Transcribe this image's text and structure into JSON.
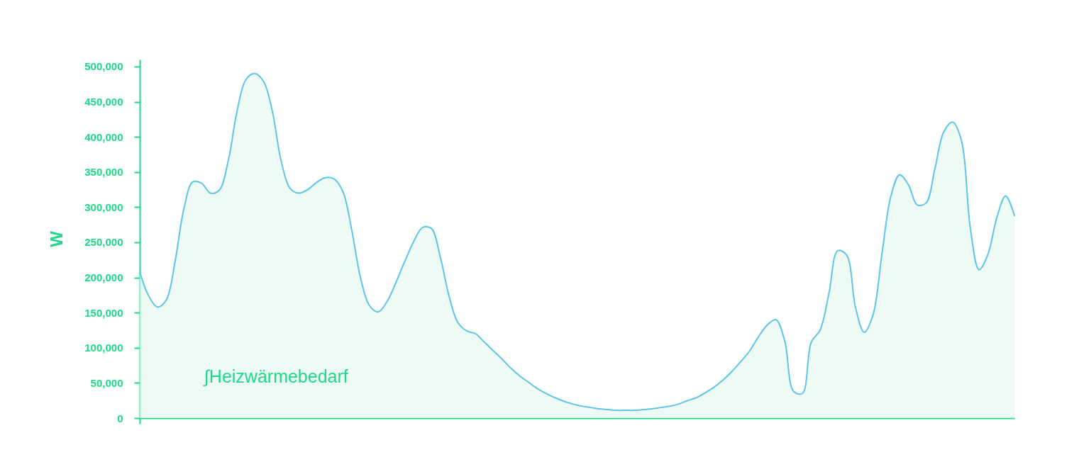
{
  "chart_data": {
    "type": "area",
    "ylabel": "W",
    "annotations": [
      "∫Heizwärmebedarf"
    ],
    "categories": [
      null,
      null,
      null,
      null,
      null,
      null,
      null,
      null,
      null,
      null,
      null,
      null,
      null,
      null,
      null,
      null,
      null,
      null,
      null,
      null,
      null,
      null,
      null,
      null,
      null,
      null,
      null,
      null,
      null,
      null,
      null,
      null,
      null,
      null,
      null,
      null,
      null,
      null,
      null,
      null,
      null,
      null,
      null,
      null,
      null,
      null,
      null,
      null,
      null,
      null,
      null,
      null,
      null,
      null,
      null,
      null,
      null,
      null,
      null,
      null,
      null,
      null,
      null,
      null,
      null,
      null,
      null,
      null,
      null,
      null,
      null,
      null,
      null,
      null,
      null,
      null,
      null,
      null,
      null,
      null,
      null,
      null,
      null,
      null,
      null,
      null,
      null,
      null,
      null,
      null,
      null,
      null,
      null,
      null,
      null,
      null,
      null,
      null,
      null,
      null
    ],
    "series": [
      {
        "color": "#5ec5e8",
        "values": [
          208000,
          174000,
          158000,
          168000,
          223000,
          298000,
          336000,
          334000,
          320000,
          324000,
          365000,
          436000,
          481000,
          490000,
          479000,
          437000,
          366000,
          327000,
          320000,
          325000,
          335000,
          342000,
          340000,
          322000,
          267000,
          199000,
          160000,
          151000,
          166000,
          193000,
          223000,
          251000,
          271000,
          270000,
          230000,
          174000,
          136000,
          124000,
          120000,
          108000,
          96000,
          84000,
          71000,
          60000,
          51000,
          42000,
          35000,
          29000,
          24000,
          20000,
          17000,
          15000,
          13000,
          12000,
          11000,
          11000,
          11000,
          12000,
          13000,
          15000,
          17000,
          20000,
          25000,
          29000,
          36000,
          44000,
          54000,
          66000,
          80000,
          95000,
          115000,
          132000,
          140000,
          110000,
          38000,
          35000,
          108000,
          125000,
          177000,
          238000,
          232000,
          158000,
          122000,
          147000,
          233000,
          315000,
          346000,
          332000,
          303000,
          306000,
          355000,
          407000,
          421000,
          395000,
          271000,
          211000,
          233000,
          285000,
          316000,
          288000
        ]
      }
    ],
    "ylim": [
      0,
      510000
    ],
    "yticks": [
      0,
      {
        "value": 50000,
        "label": "50,000"
      },
      {
        "value": 100000,
        "label": "100,000"
      },
      {
        "value": 150000,
        "label": "150,000"
      },
      {
        "value": 200000,
        "label": "200,000"
      },
      {
        "value": 250000,
        "label": "250,000"
      },
      {
        "value": 300000,
        "label": "300,000"
      },
      {
        "value": 350000,
        "label": "350,000"
      },
      {
        "value": 400000,
        "label": "400,000"
      },
      {
        "value": 450000,
        "label": "450,000"
      },
      {
        "value": 500000,
        "label": "500,000"
      }
    ],
    "tick_labels": "y"
  }
}
